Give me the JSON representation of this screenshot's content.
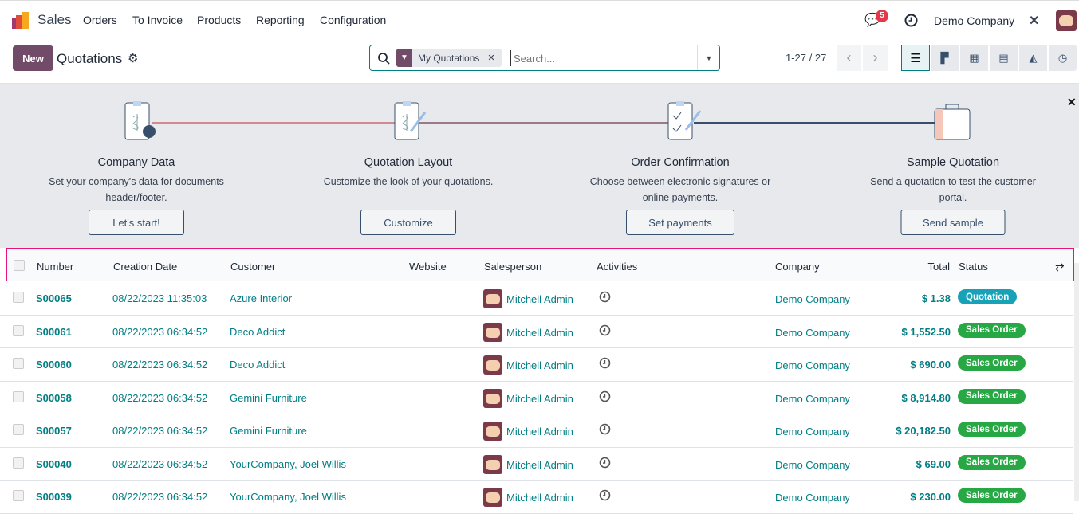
{
  "navbar": {
    "app": "Sales",
    "menu": [
      "Orders",
      "To Invoice",
      "Products",
      "Reporting",
      "Configuration"
    ],
    "messages_count": "5",
    "company": "Demo Company"
  },
  "control": {
    "new_label": "New",
    "title": "Quotations",
    "facet": "My Quotations",
    "search_placeholder": "Search...",
    "pager": "1-27 / 27",
    "views": [
      "list",
      "kanban",
      "calendar",
      "pivot",
      "graph",
      "activity"
    ]
  },
  "banner": {
    "steps": [
      {
        "title": "Company Data",
        "desc": "Set your company's data for documents header/footer.",
        "button": "Let's start!"
      },
      {
        "title": "Quotation Layout",
        "desc": "Customize the look of your quotations.",
        "button": "Customize"
      },
      {
        "title": "Order Confirmation",
        "desc": "Choose between electronic signatures or online payments.",
        "button": "Set payments"
      },
      {
        "title": "Sample Quotation",
        "desc": "Send a quotation to test the customer portal.",
        "button": "Send sample"
      }
    ]
  },
  "table": {
    "headers": [
      "Number",
      "Creation Date",
      "Customer",
      "Website",
      "Salesperson",
      "Activities",
      "Company",
      "Total",
      "Status"
    ],
    "rows": [
      {
        "number": "S00065",
        "date": "08/22/2023 11:35:03",
        "customer": "Azure Interior",
        "salesperson": "Mitchell Admin",
        "company": "Demo Company",
        "total": "$ 1.38",
        "status": "Quotation"
      },
      {
        "number": "S00061",
        "date": "08/22/2023 06:34:52",
        "customer": "Deco Addict",
        "salesperson": "Mitchell Admin",
        "company": "Demo Company",
        "total": "$ 1,552.50",
        "status": "Sales Order"
      },
      {
        "number": "S00060",
        "date": "08/22/2023 06:34:52",
        "customer": "Deco Addict",
        "salesperson": "Mitchell Admin",
        "company": "Demo Company",
        "total": "$ 690.00",
        "status": "Sales Order"
      },
      {
        "number": "S00058",
        "date": "08/22/2023 06:34:52",
        "customer": "Gemini Furniture",
        "salesperson": "Mitchell Admin",
        "company": "Demo Company",
        "total": "$ 8,914.80",
        "status": "Sales Order"
      },
      {
        "number": "S00057",
        "date": "08/22/2023 06:34:52",
        "customer": "Gemini Furniture",
        "salesperson": "Mitchell Admin",
        "company": "Demo Company",
        "total": "$ 20,182.50",
        "status": "Sales Order"
      },
      {
        "number": "S00040",
        "date": "08/22/2023 06:34:52",
        "customer": "YourCompany, Joel Willis",
        "salesperson": "Mitchell Admin",
        "company": "Demo Company",
        "total": "$ 69.00",
        "status": "Sales Order"
      },
      {
        "number": "S00039",
        "date": "08/22/2023 06:34:52",
        "customer": "YourCompany, Joel Willis",
        "salesperson": "Mitchell Admin",
        "company": "Demo Company",
        "total": "$ 230.00",
        "status": "Sales Order"
      }
    ]
  },
  "colors": {
    "brand": "#714b67",
    "link": "#017e84",
    "quotation": "#17a2b8",
    "sales_order": "#28a745"
  }
}
